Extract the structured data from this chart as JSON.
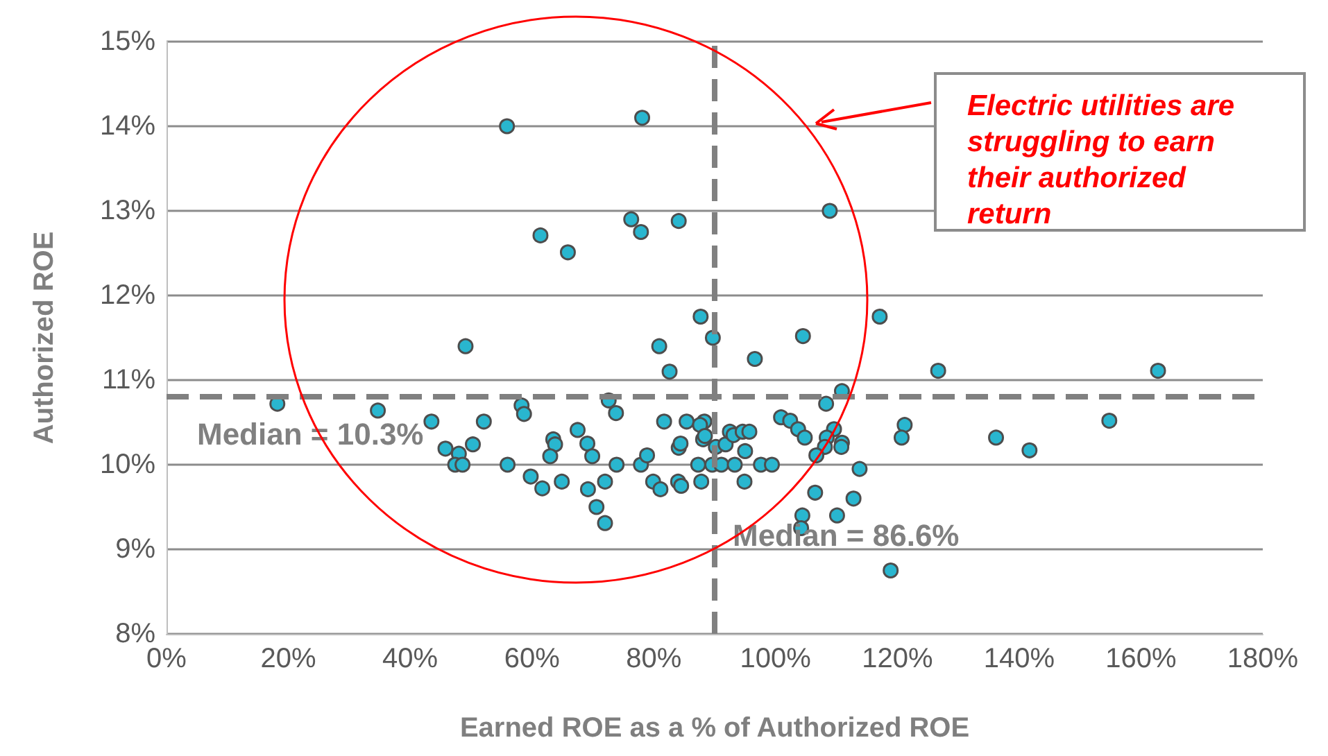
{
  "chart_data": {
    "type": "scatter",
    "xlabel": "Earned ROE as a % of Authorized ROE",
    "ylabel": "Authorized ROE",
    "annotations": [
      "Electric utilities are struggling to earn their authorized return",
      "Median = 10.3%",
      "Median = 86.6%"
    ],
    "x": [
      55.9,
      78.1,
      61.4,
      65.9,
      76.3,
      77.9,
      84.1,
      87.7,
      89.7,
      49.1,
      80.9,
      82.6,
      18.2,
      34.7,
      43.5,
      52.1,
      58.3,
      58.7,
      45.8,
      48.0,
      47.4,
      48.6,
      50.3,
      56.0,
      59.8,
      61.7,
      63.5,
      63.8,
      63.0,
      64.9,
      67.5,
      69.1,
      69.9,
      69.2,
      70.6,
      72.0,
      72.0,
      72.6,
      73.8,
      73.9,
      77.9,
      78.9,
      79.9,
      81.1,
      81.7,
      84.0,
      84.5,
      84.1,
      84.4,
      85.4,
      88.3,
      88.1,
      87.3,
      87.8,
      89.6,
      91.1,
      90.2,
      91.8,
      92.5,
      93.1,
      94.6,
      93.3,
      95.0,
      94.9,
      108.9,
      104.5,
      117.1,
      96.6,
      126.7,
      162.8,
      110.9,
      108.3,
      87.6,
      88.4,
      95.7,
      97.6,
      99.4,
      100.9,
      102.4,
      103.7,
      104.8,
      109.6,
      108.4,
      108.1,
      110.9,
      110.8,
      106.7,
      113.8,
      106.5,
      112.8,
      104.4,
      104.2,
      110.1,
      118.9,
      121.2,
      120.7,
      136.2,
      141.7,
      154.8
    ],
    "values": [
      14.0,
      14.1,
      12.71,
      12.51,
      12.9,
      12.75,
      12.88,
      11.75,
      11.5,
      11.4,
      11.4,
      11.1,
      10.72,
      10.64,
      10.51,
      10.51,
      10.7,
      10.6,
      10.19,
      10.13,
      10.0,
      10.0,
      10.24,
      10.0,
      9.86,
      9.72,
      10.3,
      10.24,
      10.1,
      9.8,
      10.41,
      10.25,
      10.1,
      9.71,
      9.5,
      9.31,
      9.8,
      10.76,
      10.61,
      10.0,
      10.0,
      10.11,
      9.8,
      9.71,
      10.51,
      9.8,
      9.75,
      10.2,
      10.25,
      10.51,
      10.51,
      10.3,
      10.0,
      9.8,
      10.0,
      10.0,
      10.21,
      10.24,
      10.39,
      10.35,
      10.39,
      10.0,
      10.16,
      9.8,
      13.0,
      11.52,
      11.75,
      11.25,
      11.11,
      11.11,
      10.87,
      10.72,
      10.47,
      10.34,
      10.39,
      10.0,
      10.0,
      10.56,
      10.52,
      10.42,
      10.32,
      10.42,
      10.32,
      10.21,
      10.26,
      10.21,
      10.11,
      9.95,
      9.67,
      9.6,
      9.4,
      9.25,
      9.4,
      8.75,
      10.47,
      10.32,
      10.32,
      10.17,
      10.52
    ],
    "color": "#29b6cf",
    "marker": "circle",
    "grid": "y",
    "xlim": [
      0,
      180
    ],
    "xticks": [
      {
        "value": 0,
        "label": "0%"
      },
      {
        "value": 20,
        "label": "20%"
      },
      {
        "value": 40,
        "label": "40%"
      },
      {
        "value": 60,
        "label": "60%"
      },
      {
        "value": 80,
        "label": "80%"
      },
      {
        "value": 100,
        "label": "100%"
      },
      {
        "value": 120,
        "label": "120%"
      },
      {
        "value": 140,
        "label": "140%"
      },
      {
        "value": 160,
        "label": "160%"
      },
      {
        "value": 180,
        "label": "180%"
      }
    ],
    "ylim": [
      8,
      15
    ],
    "yticks": [
      {
        "value": 8,
        "label": "8%"
      },
      {
        "value": 9,
        "label": "9%"
      },
      {
        "value": 10,
        "label": "10%"
      },
      {
        "value": 11,
        "label": "11%"
      },
      {
        "value": 12,
        "label": "12%"
      },
      {
        "value": 13,
        "label": "13%"
      },
      {
        "value": 14,
        "label": "14%"
      },
      {
        "value": 15,
        "label": "15%"
      }
    ],
    "ref_lines": [
      {
        "axis": "y",
        "value": 10.8,
        "color": "#808080",
        "line_style": "dashed"
      },
      {
        "axis": "x",
        "value": 90,
        "color": "#808080",
        "line_style": "dashed"
      }
    ]
  }
}
